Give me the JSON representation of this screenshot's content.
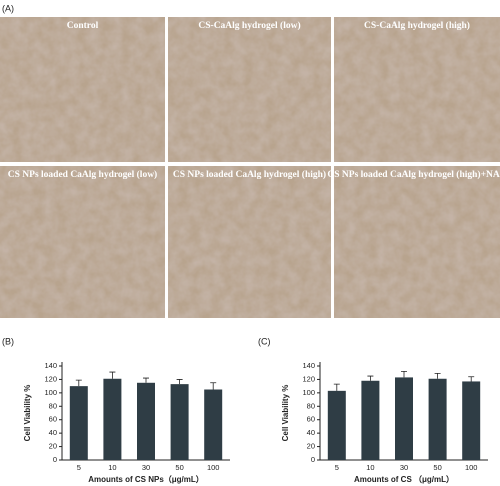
{
  "figure_a": {
    "label": "(A)",
    "images": [
      "Control",
      "CS-CaAlg hydrogel (low)",
      "CS-CaAlg hydrogel (high)",
      "CS NPs loaded CaAlg hydrogel (low)",
      "CS NPs loaded CaAlg hydrogel (high)",
      "CS NPs loaded CaAlg hydrogel (high)+NAC"
    ]
  },
  "chart_data": [
    {
      "type": "bar",
      "label": "(B)",
      "ylabel": "Cell Viability %",
      "xlabel": "Amounts of CS NPs（μg/mL）",
      "categories": [
        "5",
        "10",
        "30",
        "50",
        "100"
      ],
      "values": [
        110,
        121,
        115,
        113,
        105
      ],
      "errors": [
        9,
        10,
        7,
        7,
        10
      ],
      "color": "#2f3d45",
      "ylim": [
        0,
        140
      ],
      "yticks": [
        0,
        20,
        40,
        60,
        80,
        100,
        120,
        140
      ]
    },
    {
      "type": "bar",
      "label": "(C)",
      "ylabel": "Cell Viability %",
      "xlabel": "Amounts of CS （μg/mL）",
      "categories": [
        "5",
        "10",
        "30",
        "50",
        "100"
      ],
      "values": [
        103,
        118,
        123,
        121,
        117
      ],
      "errors": [
        10,
        7,
        9,
        8,
        7
      ],
      "color": "#2f3d45",
      "ylim": [
        0,
        140
      ],
      "yticks": [
        0,
        20,
        40,
        60,
        80,
        100,
        120,
        140
      ]
    }
  ]
}
